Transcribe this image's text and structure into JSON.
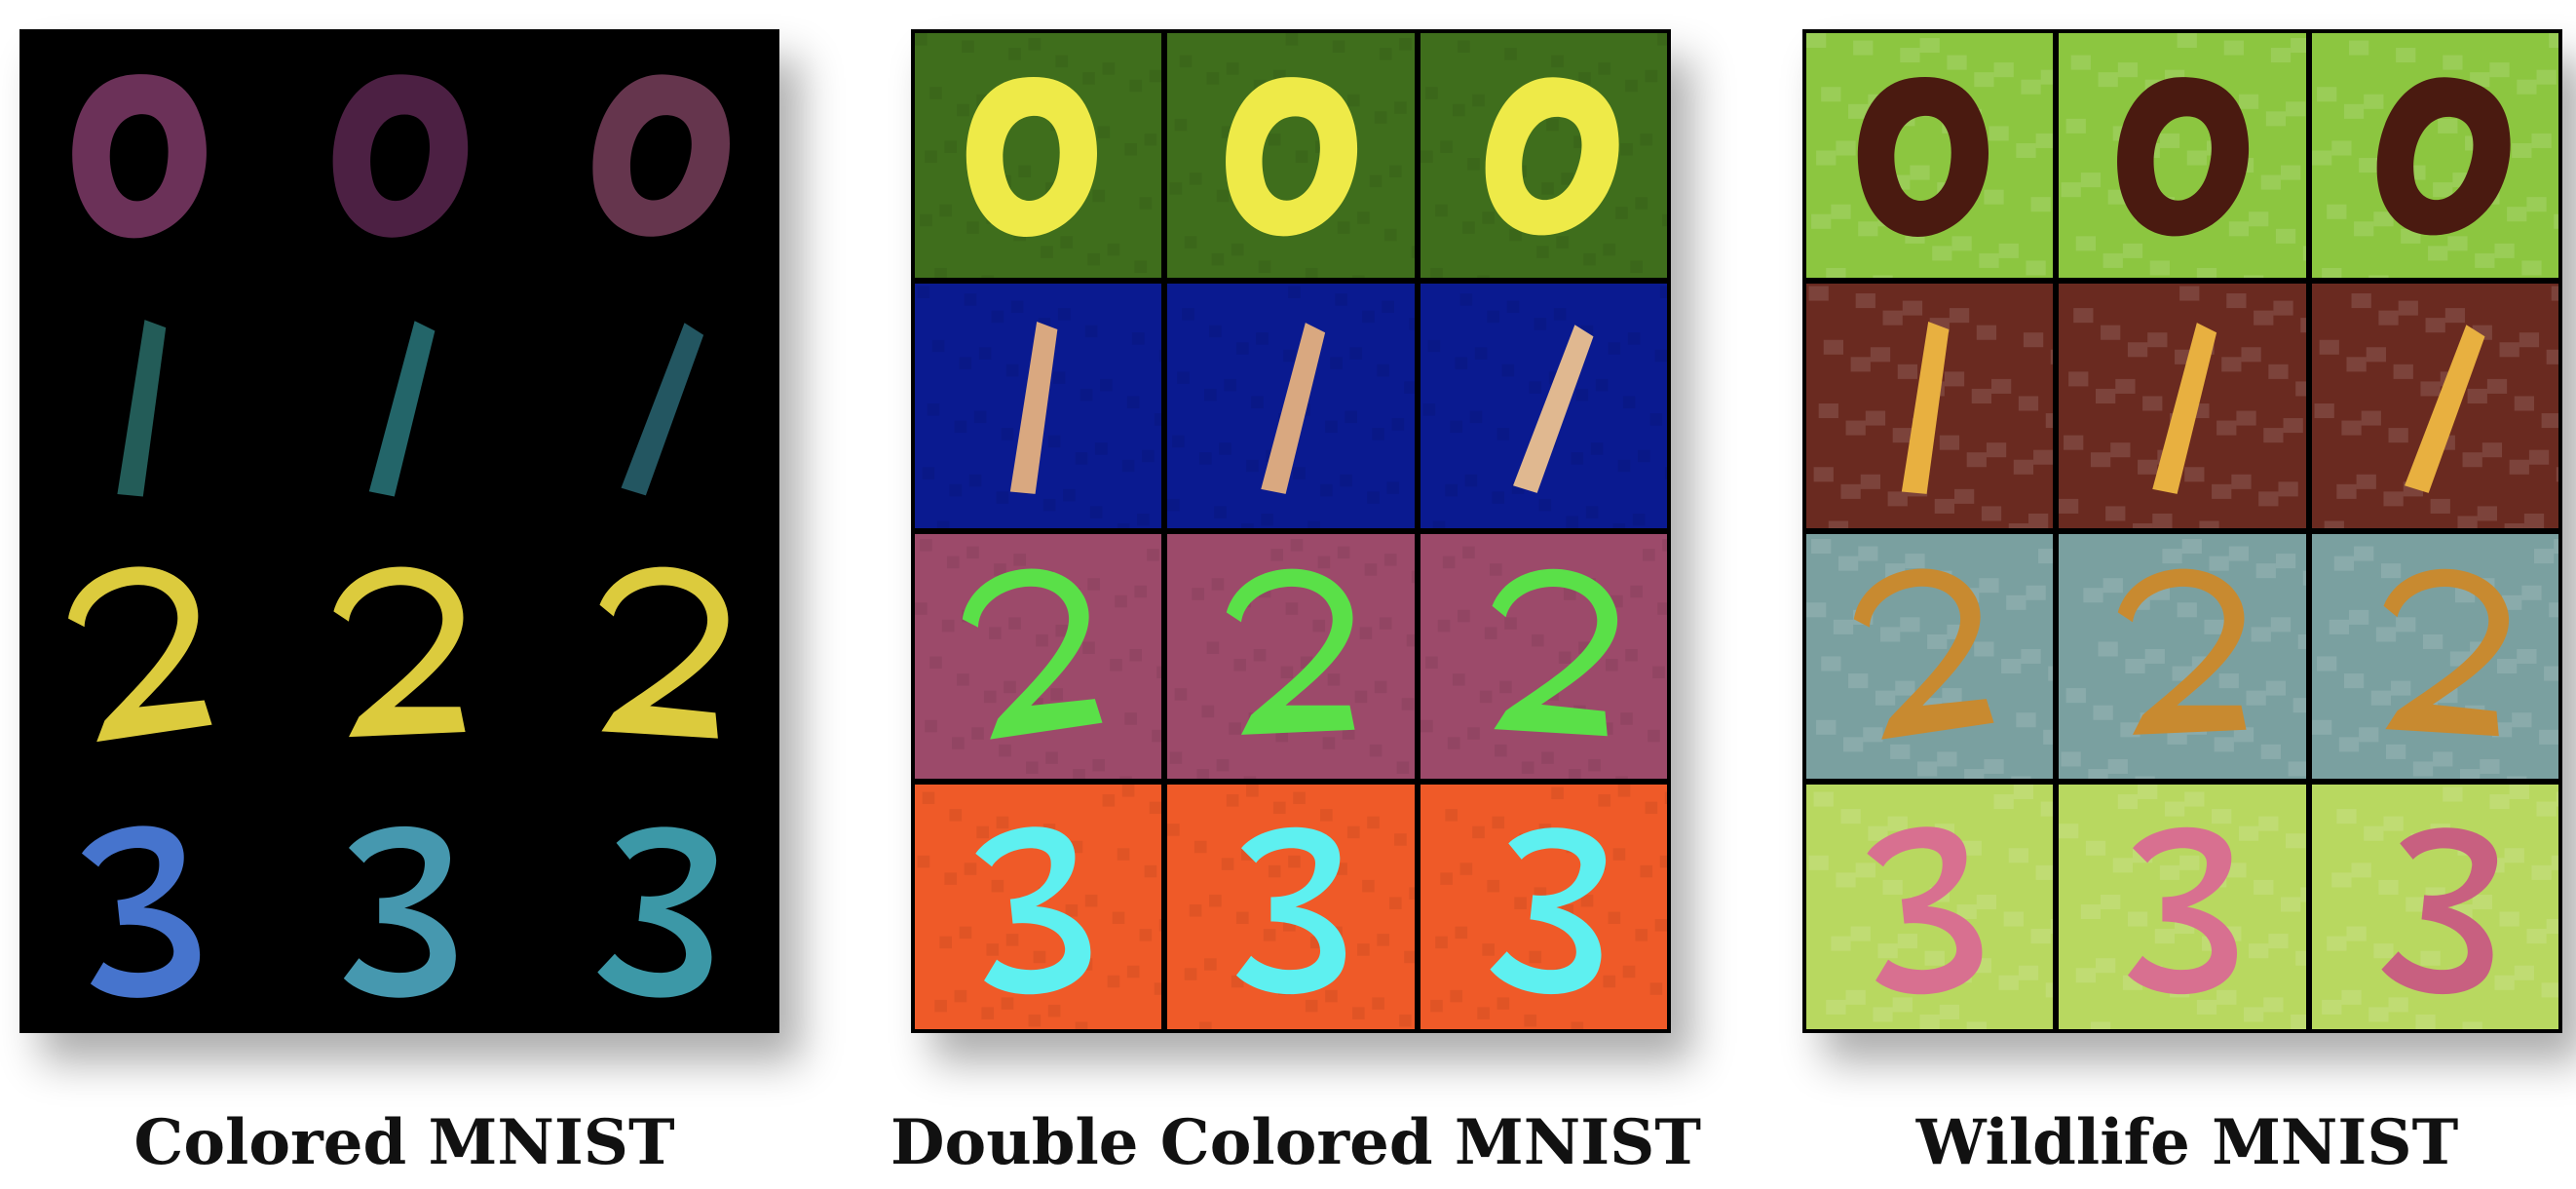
{
  "captions": {
    "colored": "Colored MNIST",
    "double": "Double Colored MNIST",
    "wildlife": "Wildlife MNIST"
  },
  "panels": {
    "colored": {
      "rows": [
        {
          "digit": "0",
          "bg": "#000000",
          "fg": [
            "#c25aa0",
            "#8a3a7a",
            "#b8608c"
          ]
        },
        {
          "digit": "1",
          "bg": "#000000",
          "fg": [
            "#3fa8a0",
            "#3fb8c0",
            "#3f9cb0"
          ]
        },
        {
          "digit": "2",
          "bg": "#000000",
          "fg": [
            "#e8d640",
            "#e8d640",
            "#e8d640"
          ]
        },
        {
          "digit": "3",
          "bg": "#000000",
          "fg": [
            "#4a7ad8",
            "#4aa0b8",
            "#3fa0b0"
          ]
        }
      ]
    },
    "double": {
      "rows": [
        {
          "digit": "0",
          "bg": "#3f6e1c",
          "fg": [
            "#eeea48",
            "#eeea48",
            "#eeea48"
          ]
        },
        {
          "digit": "1",
          "bg": "#0a1a90",
          "fg": [
            "#d9a880",
            "#d9a880",
            "#e0b890"
          ]
        },
        {
          "digit": "2",
          "bg": "#9c4a6a",
          "fg": [
            "#5ae048",
            "#5ae048",
            "#5ae048"
          ]
        },
        {
          "digit": "3",
          "bg": "#ef5a28",
          "fg": [
            "#5ef0f0",
            "#5ef0f0",
            "#5ef0f0"
          ]
        }
      ]
    },
    "wildlife": {
      "rows": [
        {
          "digit": "0",
          "bg": "#8cc640",
          "fg": [
            "#4a1a10",
            "#4a1a10",
            "#4a1a10"
          ]
        },
        {
          "digit": "1",
          "bg": "#6a2a20",
          "fg": [
            "#e8b040",
            "#e8b040",
            "#e8b040"
          ]
        },
        {
          "digit": "2",
          "bg": "#7aa0a0",
          "fg": [
            "#c88a30",
            "#c88a30",
            "#c88a30"
          ]
        },
        {
          "digit": "3",
          "bg": "#b8d860",
          "fg": [
            "#d87090",
            "#d87090",
            "#c86080"
          ]
        }
      ]
    }
  }
}
